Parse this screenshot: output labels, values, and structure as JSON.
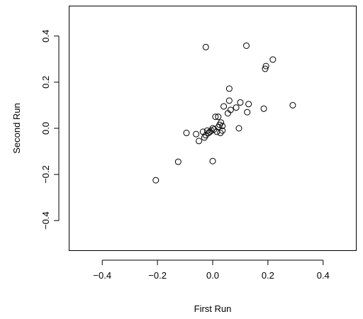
{
  "chart_data": {
    "type": "scatter",
    "title": "",
    "xlabel": "First Run",
    "ylabel": "Second Run",
    "xlim": [
      -0.52,
      0.52
    ],
    "ylim": [
      -0.53,
      0.53
    ],
    "xticks": [
      -0.4,
      -0.2,
      0.0,
      0.2,
      0.4
    ],
    "xtick_labels": [
      "−0.4",
      "−0.2",
      "0.0",
      "0.2",
      "0.4"
    ],
    "yticks": [
      -0.4,
      -0.2,
      0.0,
      0.2,
      0.4
    ],
    "ytick_labels": [
      "−0.4",
      "−0.2",
      "0.0",
      "0.2",
      "0.4"
    ],
    "grid": false,
    "marker": "open-circle",
    "points": [
      {
        "x": -0.206,
        "y": -0.225
      },
      {
        "x": -0.125,
        "y": -0.145
      },
      {
        "x": 0.0,
        "y": -0.142
      },
      {
        "x": -0.095,
        "y": -0.02
      },
      {
        "x": -0.06,
        "y": -0.025
      },
      {
        "x": -0.05,
        "y": -0.055
      },
      {
        "x": -0.035,
        "y": -0.015
      },
      {
        "x": -0.03,
        "y": -0.04
      },
      {
        "x": -0.025,
        "y": -0.03
      },
      {
        "x": -0.02,
        "y": -0.01
      },
      {
        "x": -0.015,
        "y": -0.02
      },
      {
        "x": -0.01,
        "y": -0.015
      },
      {
        "x": -0.005,
        "y": -0.01
      },
      {
        "x": 0.0,
        "y": 0.0
      },
      {
        "x": 0.005,
        "y": -0.005
      },
      {
        "x": 0.01,
        "y": 0.05
      },
      {
        "x": 0.015,
        "y": -0.015
      },
      {
        "x": 0.02,
        "y": 0.05
      },
      {
        "x": 0.02,
        "y": 0.005
      },
      {
        "x": 0.025,
        "y": 0.015
      },
      {
        "x": 0.028,
        "y": -0.02
      },
      {
        "x": 0.03,
        "y": 0.025
      },
      {
        "x": 0.035,
        "y": 0.01
      },
      {
        "x": 0.035,
        "y": -0.01
      },
      {
        "x": 0.04,
        "y": 0.095
      },
      {
        "x": 0.055,
        "y": 0.065
      },
      {
        "x": 0.06,
        "y": 0.12
      },
      {
        "x": 0.06,
        "y": 0.172
      },
      {
        "x": 0.065,
        "y": 0.08
      },
      {
        "x": 0.085,
        "y": 0.09
      },
      {
        "x": 0.095,
        "y": 0.0
      },
      {
        "x": 0.1,
        "y": 0.112
      },
      {
        "x": 0.125,
        "y": 0.07
      },
      {
        "x": 0.13,
        "y": 0.105
      },
      {
        "x": 0.185,
        "y": 0.085
      },
      {
        "x": 0.19,
        "y": 0.258
      },
      {
        "x": 0.193,
        "y": 0.27
      },
      {
        "x": 0.218,
        "y": 0.298
      },
      {
        "x": 0.29,
        "y": 0.1
      },
      {
        "x": -0.025,
        "y": 0.352
      },
      {
        "x": 0.122,
        "y": 0.358
      }
    ]
  }
}
